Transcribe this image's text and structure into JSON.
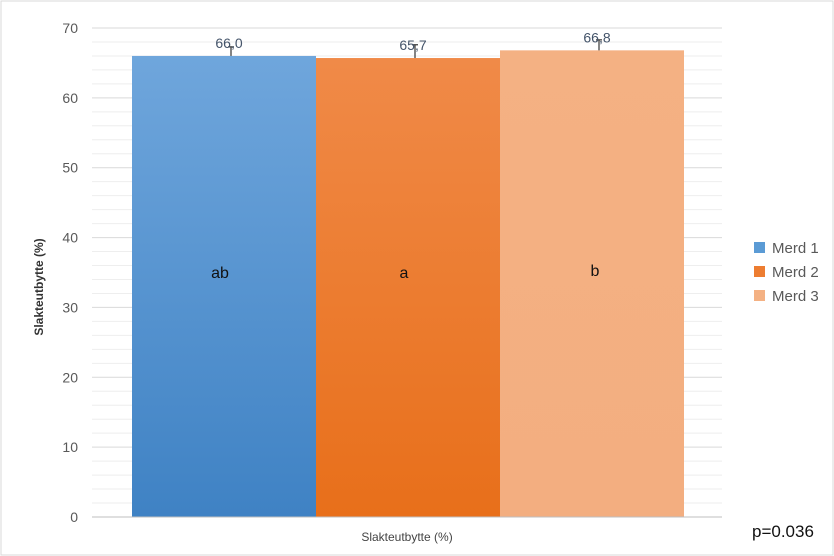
{
  "chart_data": {
    "type": "bar",
    "title": "",
    "xlabel": "Slakteutbytte (%)",
    "ylabel": "Slakteutbytte (%)",
    "ylim": [
      0,
      70
    ],
    "yticks": [
      0,
      10,
      20,
      30,
      40,
      50,
      60,
      70
    ],
    "grid": true,
    "legend_position": "right",
    "categories": [
      "Slakteutbytte (%)"
    ],
    "series": [
      {
        "name": "Merd 1",
        "values": [
          66.0
        ],
        "error": [
          1.3
        ],
        "data_label": "66,0",
        "group_letter": "ab",
        "color": "#5b9bd5"
      },
      {
        "name": "Merd 2",
        "values": [
          65.7
        ],
        "error": [
          1.9
        ],
        "data_label": "65,7",
        "group_letter": "a",
        "color": "#ed7d31"
      },
      {
        "name": "Merd 3",
        "values": [
          66.8
        ],
        "error": [
          1.5
        ],
        "data_label": "66,8",
        "group_letter": "b",
        "color": "#f4b183"
      }
    ]
  },
  "annotation": {
    "p_value": "p=0.036"
  }
}
